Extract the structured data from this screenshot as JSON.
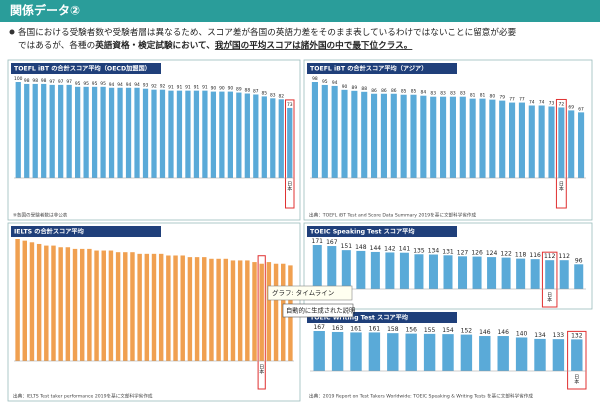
{
  "header": {
    "title": "関係データ②"
  },
  "intro": {
    "lines": [
      [
        {
          "text": "各国における受験者数や受験者層は異なるため、スコア差が各国の英語力差をそのまま表しているわけではないことに留意が必要",
          "style": "plain"
        }
      ],
      [
        {
          "text": "ではあるが、各種の",
          "style": "plain"
        },
        {
          "text": "英語資格・検定試験において、",
          "style": "bold"
        },
        {
          "text": "我が国の平均スコアは諸外国の中で最下位クラス。",
          "style": "bold-underline"
        }
      ]
    ]
  },
  "chart_data": [
    {
      "type": "bar",
      "title": "TOEFL iBT の合計スコア平均（OECD加盟国）",
      "color": "#5aaad8",
      "show_values": true,
      "highlight": 32,
      "categories": [
        null,
        null,
        null,
        null,
        null,
        null,
        null,
        null,
        null,
        null,
        null,
        null,
        null,
        null,
        null,
        null,
        null,
        null,
        null,
        null,
        null,
        null,
        null,
        null,
        null,
        null,
        null,
        null,
        null,
        null,
        null,
        null,
        "日本"
      ],
      "values": [
        100,
        98,
        98,
        98,
        97,
        97,
        97,
        95,
        95,
        95,
        95,
        94,
        94,
        94,
        94,
        93,
        92,
        92,
        91,
        91,
        91,
        91,
        91,
        90,
        90,
        90,
        89,
        88,
        87,
        85,
        83,
        82,
        73
      ],
      "note": "※各国の受験者数は非公表"
    },
    {
      "type": "bar",
      "title": "TOEFL iBT の合計スコア平均（アジア）",
      "color": "#5aaad8",
      "show_values": true,
      "highlight": 25,
      "categories": [
        null,
        null,
        null,
        null,
        null,
        null,
        null,
        null,
        null,
        null,
        null,
        null,
        null,
        null,
        null,
        null,
        null,
        null,
        null,
        null,
        null,
        null,
        null,
        null,
        null,
        "日本",
        null,
        null
      ],
      "values": [
        98,
        95,
        94,
        90,
        89,
        88,
        86,
        86,
        86,
        85,
        85,
        84,
        83,
        83,
        83,
        83,
        81,
        81,
        80,
        79,
        77,
        77,
        74,
        74,
        73,
        72,
        69,
        67
      ],
      "note": "出典：TOEFL iBT Test and Score Data Summary 2019を基に文部科学省作成"
    },
    {
      "type": "bar",
      "title": "IELTS の合計スコア平均",
      "color": "#f0a050",
      "show_values": false,
      "highlight": 34,
      "categories": [
        null,
        null,
        null,
        null,
        null,
        null,
        null,
        null,
        null,
        null,
        null,
        null,
        null,
        null,
        null,
        null,
        null,
        null,
        null,
        null,
        null,
        null,
        null,
        null,
        null,
        null,
        null,
        null,
        null,
        null,
        null,
        null,
        null,
        null,
        "日本",
        null,
        null,
        null,
        null
      ],
      "values": [
        7.4,
        7.3,
        7.2,
        7.1,
        7.0,
        7.0,
        6.9,
        6.9,
        6.8,
        6.8,
        6.8,
        6.7,
        6.7,
        6.7,
        6.6,
        6.6,
        6.6,
        6.5,
        6.5,
        6.5,
        6.5,
        6.4,
        6.4,
        6.4,
        6.3,
        6.3,
        6.3,
        6.2,
        6.2,
        6.2,
        6.1,
        6.1,
        6.1,
        6.0,
        5.9,
        6.0,
        5.9,
        5.9,
        5.8
      ],
      "note": "出典：IELTS Test taker performance 2019を基に文部科学省作成"
    },
    {
      "type": "bar",
      "title": "TOEIC Speaking Test スコア平均",
      "color": "#5aaad8",
      "show_values": true,
      "highlight": 16,
      "categories": [
        null,
        null,
        null,
        null,
        null,
        null,
        null,
        null,
        null,
        null,
        null,
        null,
        null,
        null,
        null,
        null,
        "日本",
        null,
        null
      ],
      "values": [
        171,
        167,
        151,
        148,
        144,
        142,
        141,
        135,
        134,
        131,
        127,
        126,
        124,
        122,
        118,
        116,
        112,
        112,
        96
      ]
    },
    {
      "type": "bar",
      "title": "TOEIC Writing Test スコア平均",
      "color": "#5aaad8",
      "show_values": true,
      "highlight": 14,
      "categories": [
        null,
        null,
        null,
        null,
        null,
        null,
        null,
        null,
        null,
        null,
        null,
        null,
        null,
        null,
        "日本"
      ],
      "values": [
        167,
        163,
        161,
        161,
        158,
        156,
        155,
        154,
        152,
        146,
        146,
        140,
        134,
        133,
        132
      ],
      "note": "出典：2019 Report on Test Takers Worldwide: TOEIC Speaking & Writing Tests を基に文部科学省作成"
    }
  ],
  "tooltip": {
    "title": "グラフ: タイムライン",
    "description": "自動的に生成された説明"
  }
}
